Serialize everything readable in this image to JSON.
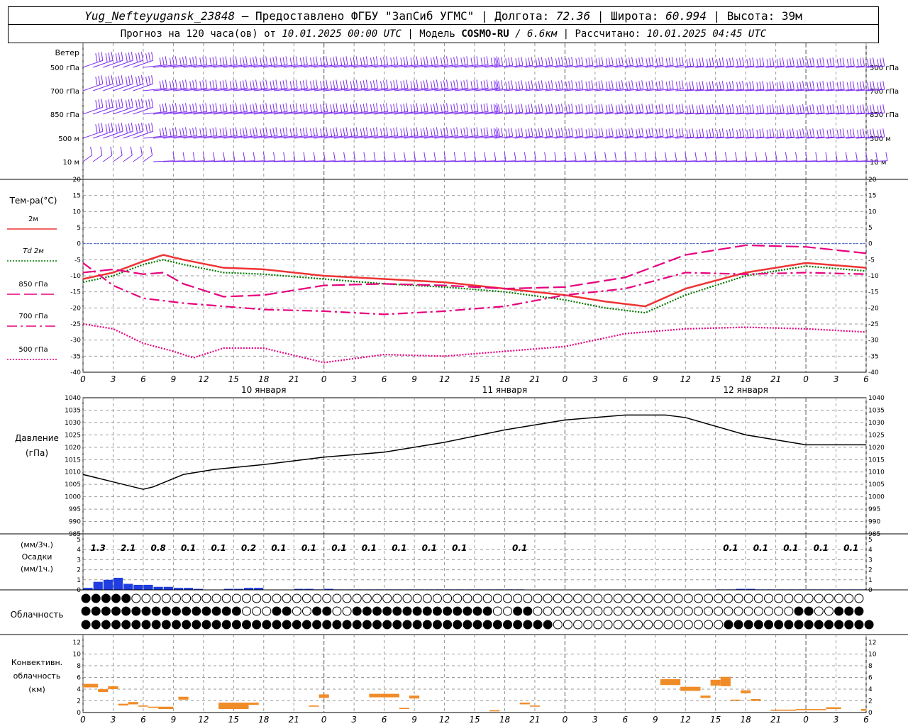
{
  "header": {
    "station": "Yug_Nefteyugansk_23848",
    "provider": "– Предоставлено ФГБУ \"ЗапСиб УГМС\"",
    "lon_label": "Долгота:",
    "lon": "72.36",
    "lat_label": "Широта:",
    "lat": "60.994",
    "alt_label": "Высота:",
    "alt": "39м",
    "forecast_prefix": "Прогноз на 120 часа(ов) от",
    "forecast_start": "10.01.2025 00:00 UTC",
    "model_label": "Модель",
    "model": "COSMO-RU",
    "model_res": "/ 6.6км",
    "computed_label": "Рассчитано:",
    "computed": "10.01.2025 04:45 UTC",
    "sep": "|"
  },
  "chart_data": {
    "type": "meteogram",
    "x_ticks": [
      "0",
      "3",
      "6",
      "9",
      "12",
      "15",
      "18",
      "21",
      "0",
      "3",
      "6",
      "9",
      "12",
      "15",
      "18",
      "21",
      "0",
      "3",
      "6",
      "9",
      "12",
      "15",
      "18",
      "21",
      "0",
      "3",
      "6"
    ],
    "day_labels": [
      {
        "text": "10 января",
        "x": 18
      },
      {
        "text": "11 января",
        "x": 42
      },
      {
        "text": "12 января",
        "x": 66
      }
    ],
    "day_boundaries": [
      24,
      48,
      72
    ],
    "wind": {
      "label": "Ветер",
      "levels": [
        "500 гПа",
        "700 гПа",
        "850 гПа",
        "500 м",
        "10 м"
      ],
      "level_x_from": 0,
      "level_x_to": 78,
      "level_step": 1
    },
    "temperature": {
      "label": "Тем-ра(°C)",
      "ylim": [
        -40,
        20
      ],
      "y_ticks": [
        "20",
        "15",
        "10",
        "5",
        "0",
        "-5",
        "-10",
        "-15",
        "-20",
        "-25",
        "-30",
        "-35",
        "-40"
      ],
      "series": [
        {
          "name": "2м",
          "color": "#ee3333",
          "style": "solid",
          "x": [
            0,
            3,
            6,
            8,
            10,
            14,
            18,
            24,
            30,
            36,
            42,
            48,
            52,
            56,
            60,
            66,
            72,
            78
          ],
          "values": [
            -11,
            -9,
            -5.5,
            -3.5,
            -5,
            -7.5,
            -8,
            -10,
            -11,
            -12,
            -14,
            -16,
            -18,
            -19.5,
            -14,
            -9,
            -6,
            -7.5
          ]
        },
        {
          "name": "Td 2м",
          "color": "#007700",
          "style": "dotted",
          "x": [
            0,
            3,
            6,
            8,
            10,
            14,
            18,
            24,
            30,
            36,
            42,
            48,
            52,
            56,
            60,
            66,
            72,
            78
          ],
          "values": [
            -12,
            -10,
            -6.5,
            -5,
            -6.5,
            -9,
            -9.5,
            -11,
            -12.5,
            -13.5,
            -15,
            -17.5,
            -20,
            -21.5,
            -16,
            -10,
            -7,
            -8.5
          ]
        },
        {
          "name": "850 гПа",
          "color": "#e6007e",
          "style": "dash",
          "x": [
            0,
            3,
            6,
            8,
            10,
            14,
            18,
            24,
            30,
            36,
            42,
            48,
            54,
            60,
            66,
            72,
            78
          ],
          "values": [
            -9,
            -8,
            -9.5,
            -9,
            -12.5,
            -16.5,
            -16,
            -13,
            -12.5,
            -13,
            -14,
            -13.5,
            -10.5,
            -3.5,
            -0.5,
            -1,
            -3
          ]
        },
        {
          "name": "700 гПа",
          "color": "#e6007e",
          "style": "dashdot",
          "x": [
            0,
            3,
            6,
            10,
            14,
            18,
            24,
            30,
            36,
            42,
            48,
            54,
            60,
            66,
            72,
            78
          ],
          "values": [
            -6,
            -13,
            -17,
            -18.5,
            -19.5,
            -20.5,
            -21,
            -22,
            -21,
            -19.5,
            -16,
            -14,
            -9,
            -9.5,
            -9,
            -9.5
          ]
        },
        {
          "name": "500 гПа",
          "color": "#e6007e",
          "style": "dotted",
          "x": [
            0,
            3,
            6,
            9,
            11,
            14,
            18,
            24,
            30,
            36,
            42,
            48,
            54,
            60,
            66,
            72,
            78
          ],
          "values": [
            -25,
            -26.5,
            -31,
            -33.5,
            -35.5,
            -32.5,
            -32.5,
            -37,
            -34.5,
            -35,
            -33.5,
            -32,
            -28,
            -26.5,
            -26,
            -26.5,
            -27.5
          ]
        }
      ]
    },
    "pressure": {
      "label": "Давление",
      "unit": "(гПа)",
      "ylim": [
        985,
        1040
      ],
      "y_ticks": [
        "1040",
        "1035",
        "1030",
        "1025",
        "1020",
        "1015",
        "1010",
        "1005",
        "1000",
        "995",
        "990",
        "985"
      ],
      "x": [
        0,
        3,
        5,
        6,
        7,
        10,
        13,
        18,
        24,
        30,
        36,
        42,
        48,
        54,
        58,
        60,
        66,
        72,
        78
      ],
      "values": [
        1009,
        1006,
        1004,
        1003,
        1004,
        1009,
        1011,
        1013,
        1016,
        1018,
        1022,
        1027,
        1031,
        1033,
        1033,
        1032,
        1025,
        1021,
        1021
      ]
    },
    "precip": {
      "label_units_3h": "(мм/3ч.)",
      "label": "Осадки",
      "label_units_1h": "(мм/1ч.)",
      "ylim": [
        0,
        5
      ],
      "y_ticks": [
        "5",
        "4",
        "3",
        "2",
        "1",
        "0"
      ],
      "sums_3h": [
        {
          "x": 1.5,
          "v": "1.3"
        },
        {
          "x": 4.5,
          "v": "2.1"
        },
        {
          "x": 7.5,
          "v": "0.8"
        },
        {
          "x": 10.5,
          "v": "0.1"
        },
        {
          "x": 13.5,
          "v": "0.1"
        },
        {
          "x": 16.5,
          "v": "0.2"
        },
        {
          "x": 19.5,
          "v": "0.1"
        },
        {
          "x": 22.5,
          "v": "0.1"
        },
        {
          "x": 25.5,
          "v": "0.1"
        },
        {
          "x": 28.5,
          "v": "0.1"
        },
        {
          "x": 31.5,
          "v": "0.1"
        },
        {
          "x": 34.5,
          "v": "0.1"
        },
        {
          "x": 37.5,
          "v": "0.1"
        },
        {
          "x": 43.5,
          "v": "0.1"
        },
        {
          "x": 64.5,
          "v": "0.1"
        },
        {
          "x": 67.5,
          "v": "0.1"
        },
        {
          "x": 70.5,
          "v": "0.1"
        },
        {
          "x": 73.5,
          "v": "0.1"
        },
        {
          "x": 76.5,
          "v": "0.1"
        }
      ],
      "hourly": [
        0.2,
        0.8,
        1.0,
        1.2,
        0.6,
        0.5,
        0.5,
        0.3,
        0.3,
        0.2,
        0.2,
        0.1,
        0,
        0,
        0.1,
        0.1,
        0.2,
        0.2,
        0,
        0,
        0,
        0.1,
        0.1,
        0.05,
        0.1,
        0.05,
        0.05,
        0.05,
        0.05,
        0.05,
        0.05,
        0.05,
        0.05,
        0.05,
        0.05,
        0.05,
        0.05,
        0.05,
        0.05,
        0.05,
        0.05,
        0.05,
        0.05,
        0.05,
        0,
        0,
        0,
        0,
        0,
        0,
        0,
        0,
        0,
        0,
        0,
        0,
        0,
        0,
        0,
        0,
        0,
        0,
        0,
        0.05,
        0.05,
        0.1,
        0.1,
        0.05,
        0.05,
        0.05,
        0.05,
        0.05,
        0.05,
        0.05,
        0.05,
        0.05,
        0.05,
        0.05
      ]
    },
    "cloud": {
      "label": "Облачность",
      "rows": [
        "fffff0000000000000000000000000000000000000000000000000000000000000000000000000",
        "ffffffffffffffff000ff00ff00ffffffffffffff00ff00000000000000000000000000ff00fff",
        "fffffffffffffffffffffffffffffffffffffffffffffff00000000000000000fffffffffffffff"
      ]
    },
    "convective": {
      "label1": "Конвективн.",
      "label2": "облачность",
      "label3": "(км)",
      "ylim": [
        0,
        12
      ],
      "y_ticks": [
        "12",
        "10",
        "8",
        "6",
        "4",
        "2",
        "0"
      ],
      "blocks": [
        {
          "x0": 0,
          "x1": 1.5,
          "bot": 4.3,
          "top": 4.9
        },
        {
          "x0": 1.5,
          "x1": 2.5,
          "bot": 3.5,
          "top": 4.0
        },
        {
          "x0": 2.5,
          "x1": 3.5,
          "bot": 4.0,
          "top": 4.5
        },
        {
          "x0": 3.5,
          "x1": 4.5,
          "bot": 1.2,
          "top": 1.5
        },
        {
          "x0": 4.5,
          "x1": 5.5,
          "bot": 1.4,
          "top": 1.8
        },
        {
          "x0": 5.5,
          "x1": 6.5,
          "bot": 1.0,
          "top": 1.2
        },
        {
          "x0": 6.5,
          "x1": 7.5,
          "bot": 0.8,
          "top": 1.0
        },
        {
          "x0": 7.5,
          "x1": 9,
          "bot": 0.6,
          "top": 1.0
        },
        {
          "x0": 9.5,
          "x1": 10.5,
          "bot": 2.2,
          "top": 2.7
        },
        {
          "x0": 13.5,
          "x1": 16.5,
          "bot": 0.6,
          "top": 1.7
        },
        {
          "x0": 16.5,
          "x1": 17.5,
          "bot": 1.3,
          "top": 1.7
        },
        {
          "x0": 22.5,
          "x1": 23.5,
          "bot": 1.0,
          "top": 1.2
        },
        {
          "x0": 23.5,
          "x1": 24.5,
          "bot": 2.5,
          "top": 3.1
        },
        {
          "x0": 28.5,
          "x1": 31.5,
          "bot": 2.6,
          "top": 3.2
        },
        {
          "x0": 31.5,
          "x1": 32.5,
          "bot": 0.6,
          "top": 0.8
        },
        {
          "x0": 32.5,
          "x1": 33.5,
          "bot": 2.4,
          "top": 2.9
        },
        {
          "x0": 40.5,
          "x1": 41.5,
          "bot": 0.2,
          "top": 0.4
        },
        {
          "x0": 43.5,
          "x1": 44.5,
          "bot": 1.4,
          "top": 1.7
        },
        {
          "x0": 44.5,
          "x1": 45.5,
          "bot": 1.0,
          "top": 1.2
        },
        {
          "x0": 57.5,
          "x1": 59.5,
          "bot": 4.7,
          "top": 5.7
        },
        {
          "x0": 59.5,
          "x1": 61.5,
          "bot": 3.7,
          "top": 4.4
        },
        {
          "x0": 61.5,
          "x1": 62.5,
          "bot": 2.5,
          "top": 2.9
        },
        {
          "x0": 62.5,
          "x1": 63.5,
          "bot": 4.6,
          "top": 5.6
        },
        {
          "x0": 63.5,
          "x1": 64.5,
          "bot": 4.5,
          "top": 6.1
        },
        {
          "x0": 64.5,
          "x1": 65.5,
          "bot": 2.0,
          "top": 2.2
        },
        {
          "x0": 65.5,
          "x1": 66.5,
          "bot": 3.3,
          "top": 3.8
        },
        {
          "x0": 66.5,
          "x1": 67.5,
          "bot": 2.0,
          "top": 2.3
        },
        {
          "x0": 68.5,
          "x1": 71,
          "bot": 0.3,
          "top": 0.5
        },
        {
          "x0": 71,
          "x1": 74,
          "bot": 0.4,
          "top": 0.6
        },
        {
          "x0": 74,
          "x1": 75.5,
          "bot": 0.6,
          "top": 0.9
        },
        {
          "x0": 77.5,
          "x1": 78,
          "bot": 0.3,
          "top": 0.6
        }
      ]
    }
  }
}
